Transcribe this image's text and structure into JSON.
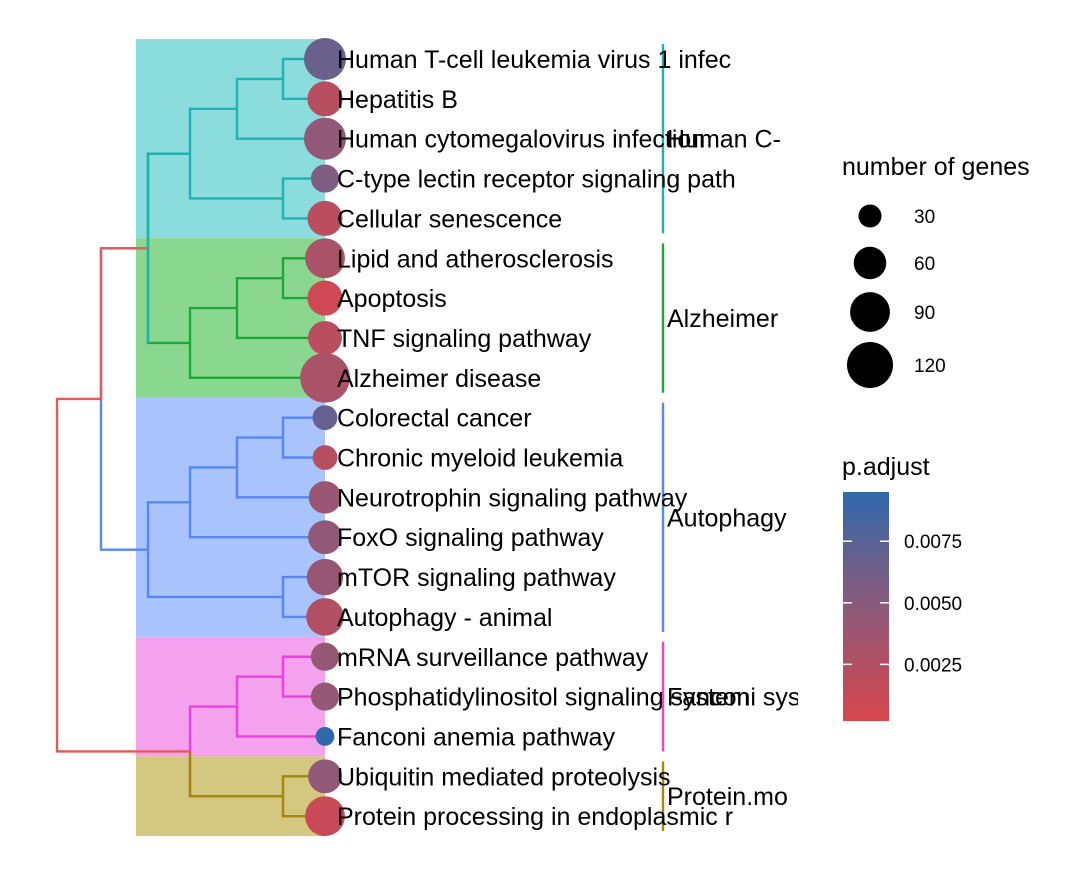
{
  "chart_data": {
    "type": "dendrogram-dotplot",
    "terms": [
      {
        "label": "Human T-cell leukemia virus 1 infec",
        "count": 100,
        "p_adjust": 0.0066,
        "cluster": 0
      },
      {
        "label": "Hepatitis B",
        "count": 70,
        "p_adjust": 0.0022,
        "cluster": 0
      },
      {
        "label": "Human cytomegalovirus infection",
        "count": 100,
        "p_adjust": 0.0045,
        "cluster": 0
      },
      {
        "label": "C-type lectin receptor signaling path",
        "count": 45,
        "p_adjust": 0.0055,
        "cluster": 0
      },
      {
        "label": "Cellular senescence",
        "count": 70,
        "p_adjust": 0.002,
        "cluster": 0
      },
      {
        "label": "Lipid and atherosclerosis",
        "count": 90,
        "p_adjust": 0.003,
        "cluster": 1
      },
      {
        "label": "Apoptosis",
        "count": 70,
        "p_adjust": 0.0008,
        "cluster": 1
      },
      {
        "label": "TNF signaling pathway",
        "count": 65,
        "p_adjust": 0.002,
        "cluster": 1
      },
      {
        "label": "Alzheimer disease",
        "count": 140,
        "p_adjust": 0.003,
        "cluster": 1
      },
      {
        "label": "Colorectal cancer",
        "count": 35,
        "p_adjust": 0.0068,
        "cluster": 2
      },
      {
        "label": "Chronic myeloid leukemia",
        "count": 35,
        "p_adjust": 0.0022,
        "cluster": 2
      },
      {
        "label": "Neurotrophin signaling pathway",
        "count": 60,
        "p_adjust": 0.004,
        "cluster": 2
      },
      {
        "label": "FoxO signaling pathway",
        "count": 65,
        "p_adjust": 0.0045,
        "cluster": 2
      },
      {
        "label": "mTOR signaling pathway",
        "count": 75,
        "p_adjust": 0.0042,
        "cluster": 2
      },
      {
        "label": "Autophagy - animal",
        "count": 80,
        "p_adjust": 0.0025,
        "cluster": 2
      },
      {
        "label": "mRNA surveillance pathway",
        "count": 45,
        "p_adjust": 0.0043,
        "cluster": 3
      },
      {
        "label": "Phosphatidylinositol signaling system",
        "count": 45,
        "p_adjust": 0.0043,
        "cluster": 3
      },
      {
        "label": "Fanconi anemia pathway",
        "count": 20,
        "p_adjust": 0.0095,
        "cluster": 3
      },
      {
        "label": "Ubiquitin mediated proteolysis",
        "count": 65,
        "p_adjust": 0.0045,
        "cluster": 4
      },
      {
        "label": "Protein processing in endoplasmic r",
        "count": 90,
        "p_adjust": 0.0012,
        "cluster": 4
      }
    ],
    "clusters": [
      {
        "label": "Human C-",
        "color": "#1fb1b5",
        "fill": "#8adcdd"
      },
      {
        "label": "Alzheimer",
        "color": "#1fa835",
        "fill": "#8ad78f"
      },
      {
        "label": "Autophagy",
        "color": "#5487fa",
        "fill": "#a9c3fd"
      },
      {
        "label": "Fanconi syste",
        "color": "#ef3fe0",
        "fill": "#f4a1ee"
      },
      {
        "label": "Protein.mo",
        "color": "#a4880b",
        "fill": "#d4c780"
      }
    ],
    "root_color": "#e45a5a",
    "size_legend": {
      "title": "number of genes",
      "breaks": [
        30,
        60,
        90,
        120
      ]
    },
    "color_legend": {
      "title": "p.adjust",
      "ticks": [
        0.0025,
        0.005,
        0.0075
      ],
      "tick_labels": [
        "0.0025",
        "0.0050",
        "0.0075"
      ],
      "range": [
        0.0002,
        0.0095
      ],
      "low_color": "#d8464d",
      "high_color": "#3069ab"
    }
  }
}
